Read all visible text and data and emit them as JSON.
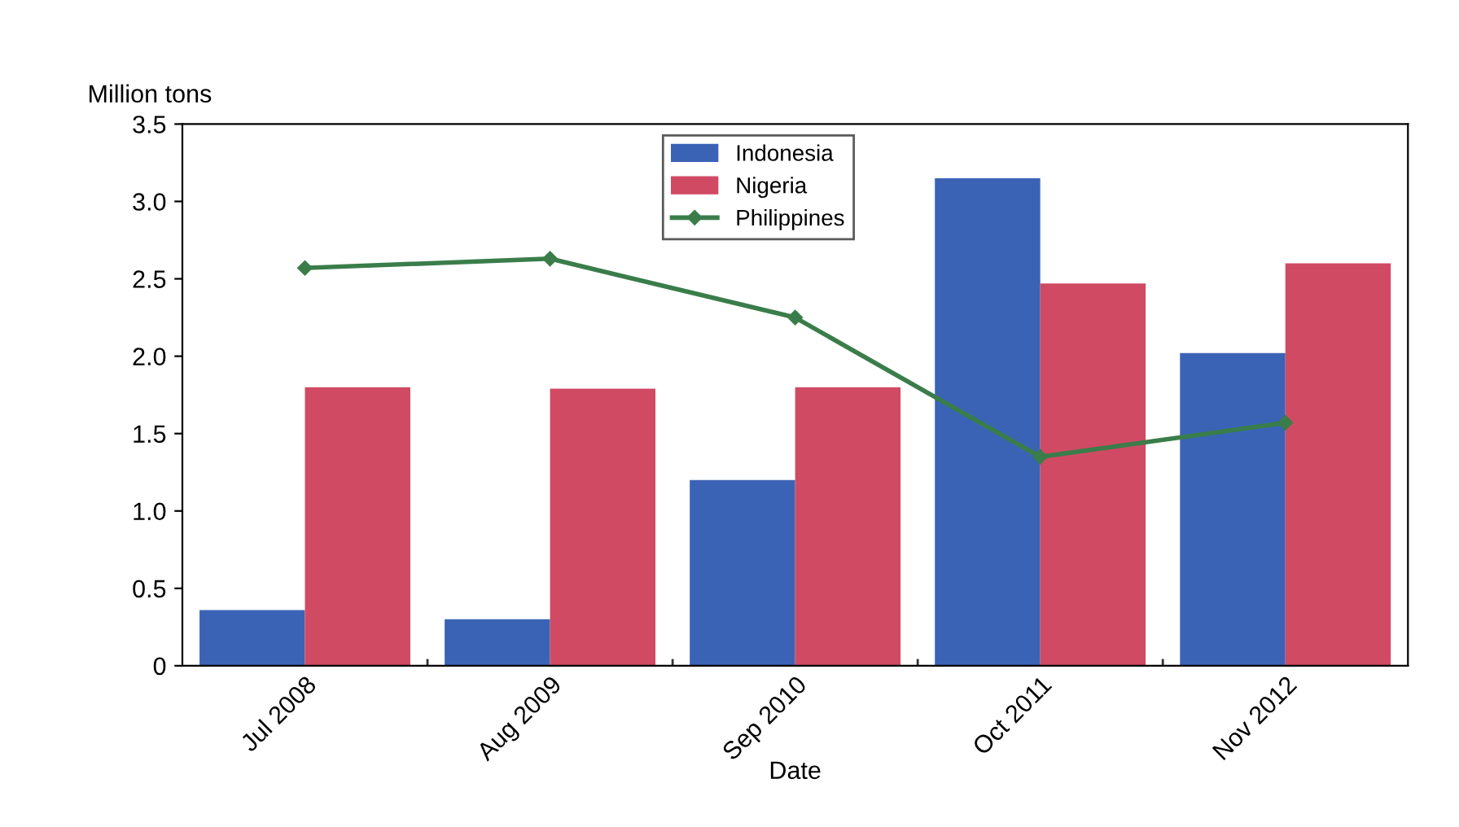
{
  "chart_data": {
    "type": "bar",
    "ylabel": "Million tons",
    "xlabel": "Date",
    "categories": [
      "Jul 2008",
      "Aug 2009",
      "Sep 2010",
      "Oct 2011",
      "Nov 2012"
    ],
    "series": [
      {
        "name": "Indonesia",
        "color": "#3b63b5",
        "values": [
          0.36,
          0.3,
          1.2,
          3.15,
          2.02
        ]
      },
      {
        "name": "Nigeria",
        "color": "#d04a64",
        "values": [
          1.8,
          1.79,
          1.8,
          2.47,
          2.6
        ]
      },
      {
        "name": "Philippines",
        "type": "line",
        "color": "#3a7d4a",
        "marker": "diamond",
        "values": [
          2.57,
          2.63,
          2.25,
          1.35,
          1.57
        ]
      }
    ],
    "ylim": [
      0,
      3.5
    ],
    "yticks": [
      {
        "value": 0,
        "label": "0"
      },
      0.5,
      {
        "value": 1,
        "label": "1.0"
      },
      1.5,
      {
        "value": 2,
        "label": "2.0"
      },
      2.5,
      {
        "value": 3,
        "label": "3.0"
      },
      3.5
    ],
    "legend": "top center",
    "grid": false
  }
}
